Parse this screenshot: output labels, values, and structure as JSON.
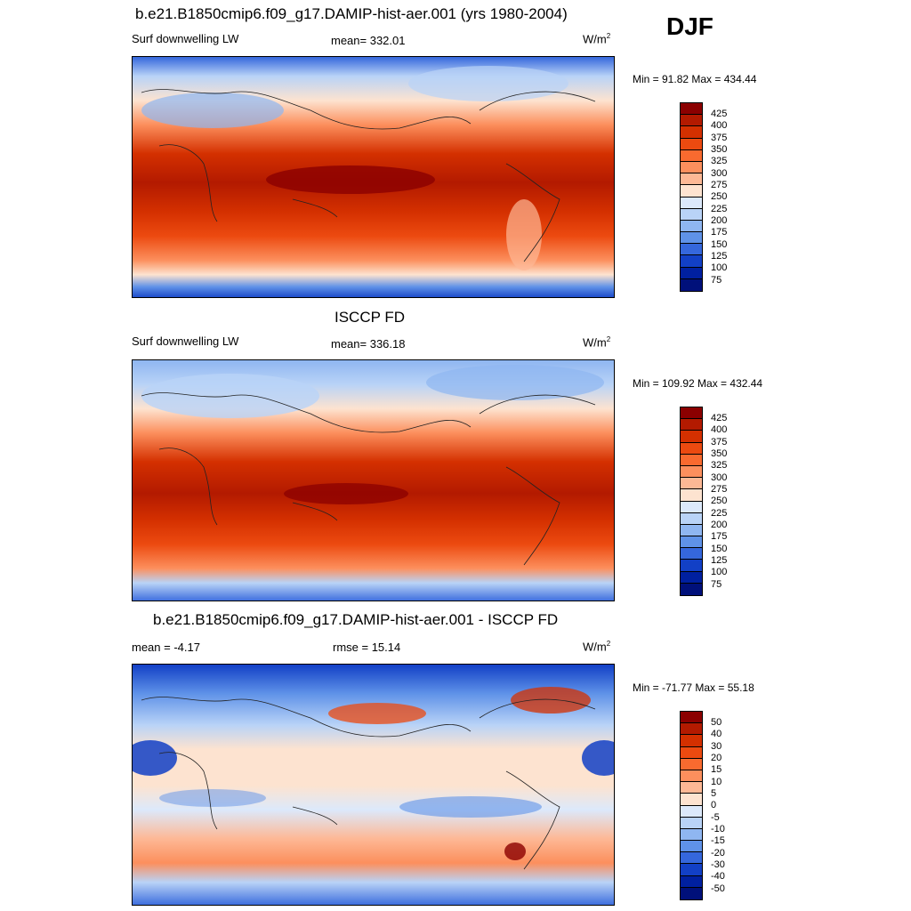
{
  "season": "DJF",
  "panels": [
    {
      "title": "b.e21.B1850cmip6.f09_g17.DAMIP-hist-aer.001 (yrs 1980-2004)",
      "left_label": "Surf downwelling LW",
      "center_label": "mean= 332.01",
      "units_base": "W/m",
      "units_exp": "2",
      "minmax": "Min =  91.82 Max = 434.44",
      "colorbar_ticks": [
        "425",
        "400",
        "375",
        "350",
        "325",
        "300",
        "275",
        "250",
        "225",
        "200",
        "175",
        "150",
        "125",
        "100",
        "75"
      ],
      "kind": "model"
    },
    {
      "title": "ISCCP FD",
      "left_label": "Surf downwelling LW",
      "center_label": "mean= 336.18",
      "units_base": "W/m",
      "units_exp": "2",
      "minmax": "Min = 109.92 Max = 432.44",
      "colorbar_ticks": [
        "425",
        "400",
        "375",
        "350",
        "325",
        "300",
        "275",
        "250",
        "225",
        "200",
        "175",
        "150",
        "125",
        "100",
        "75"
      ],
      "kind": "obs"
    },
    {
      "title": "b.e21.B1850cmip6.f09_g17.DAMIP-hist-aer.001 - ISCCP FD",
      "left_label": "mean =  -4.17",
      "center_label": "rmse =  15.14",
      "units_base": "W/m",
      "units_exp": "2",
      "minmax": "Min = -71.77 Max =  55.18",
      "colorbar_ticks": [
        "50",
        "40",
        "30",
        "20",
        "15",
        "10",
        "5",
        "0",
        "-5",
        "-10",
        "-15",
        "-20",
        "-30",
        "-40",
        "-50"
      ],
      "kind": "diff"
    }
  ],
  "colorbar_colors": [
    "#8b0000",
    "#b31a00",
    "#d43000",
    "#ec4a10",
    "#f96a2f",
    "#fc8f5d",
    "#fdb895",
    "#fde3d0",
    "#dce9fb",
    "#b9d3f7",
    "#8fb6f1",
    "#5f92e8",
    "#3567dc",
    "#1240c6",
    "#0020a0",
    "#00107a"
  ]
}
